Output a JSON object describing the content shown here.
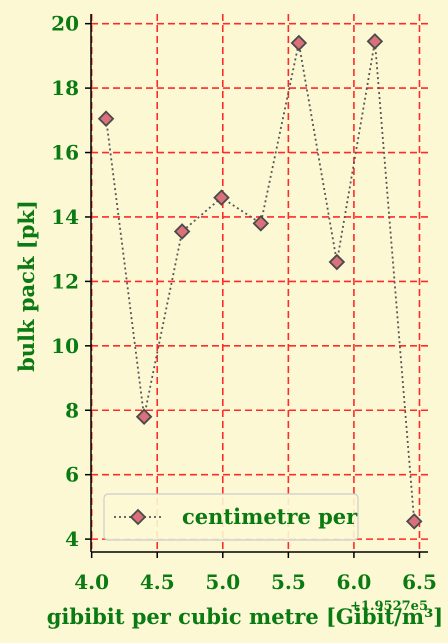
{
  "chart_data": {
    "type": "line",
    "xlabel": "gibibit per cubic metre [Gibit/m³]",
    "ylabel": "bulk pack [pk]",
    "x_offset_label": "+1.9527e5",
    "xlim": [
      3.995,
      6.565
    ],
    "ylim": [
      3.6,
      20.3
    ],
    "xticks": [
      4.0,
      4.5,
      5.0,
      5.5,
      6.0,
      6.5
    ],
    "xtick_labels": [
      "4.0",
      "4.5",
      "5.0",
      "5.5",
      "6.0",
      "6.5"
    ],
    "yticks": [
      4,
      6,
      8,
      10,
      12,
      14,
      16,
      18,
      20
    ],
    "ytick_labels": [
      "4",
      "6",
      "8",
      "10",
      "12",
      "14",
      "16",
      "18",
      "20"
    ],
    "grid": true,
    "legend_position": "lower center",
    "series": [
      {
        "name": "centimetre per",
        "x": [
          4.11,
          4.4,
          4.69,
          4.99,
          5.29,
          5.58,
          5.87,
          6.16,
          6.46
        ],
        "y": [
          17.05,
          7.8,
          13.55,
          14.6,
          13.8,
          19.4,
          12.6,
          19.45,
          4.55
        ]
      }
    ],
    "colors": {
      "background": "#fdf8d4",
      "grid": "#ff2a2a",
      "text": "#0a7a12",
      "line": "#555555",
      "marker_fill": "#d9707a",
      "marker_edge": "#4a4a4a"
    }
  }
}
